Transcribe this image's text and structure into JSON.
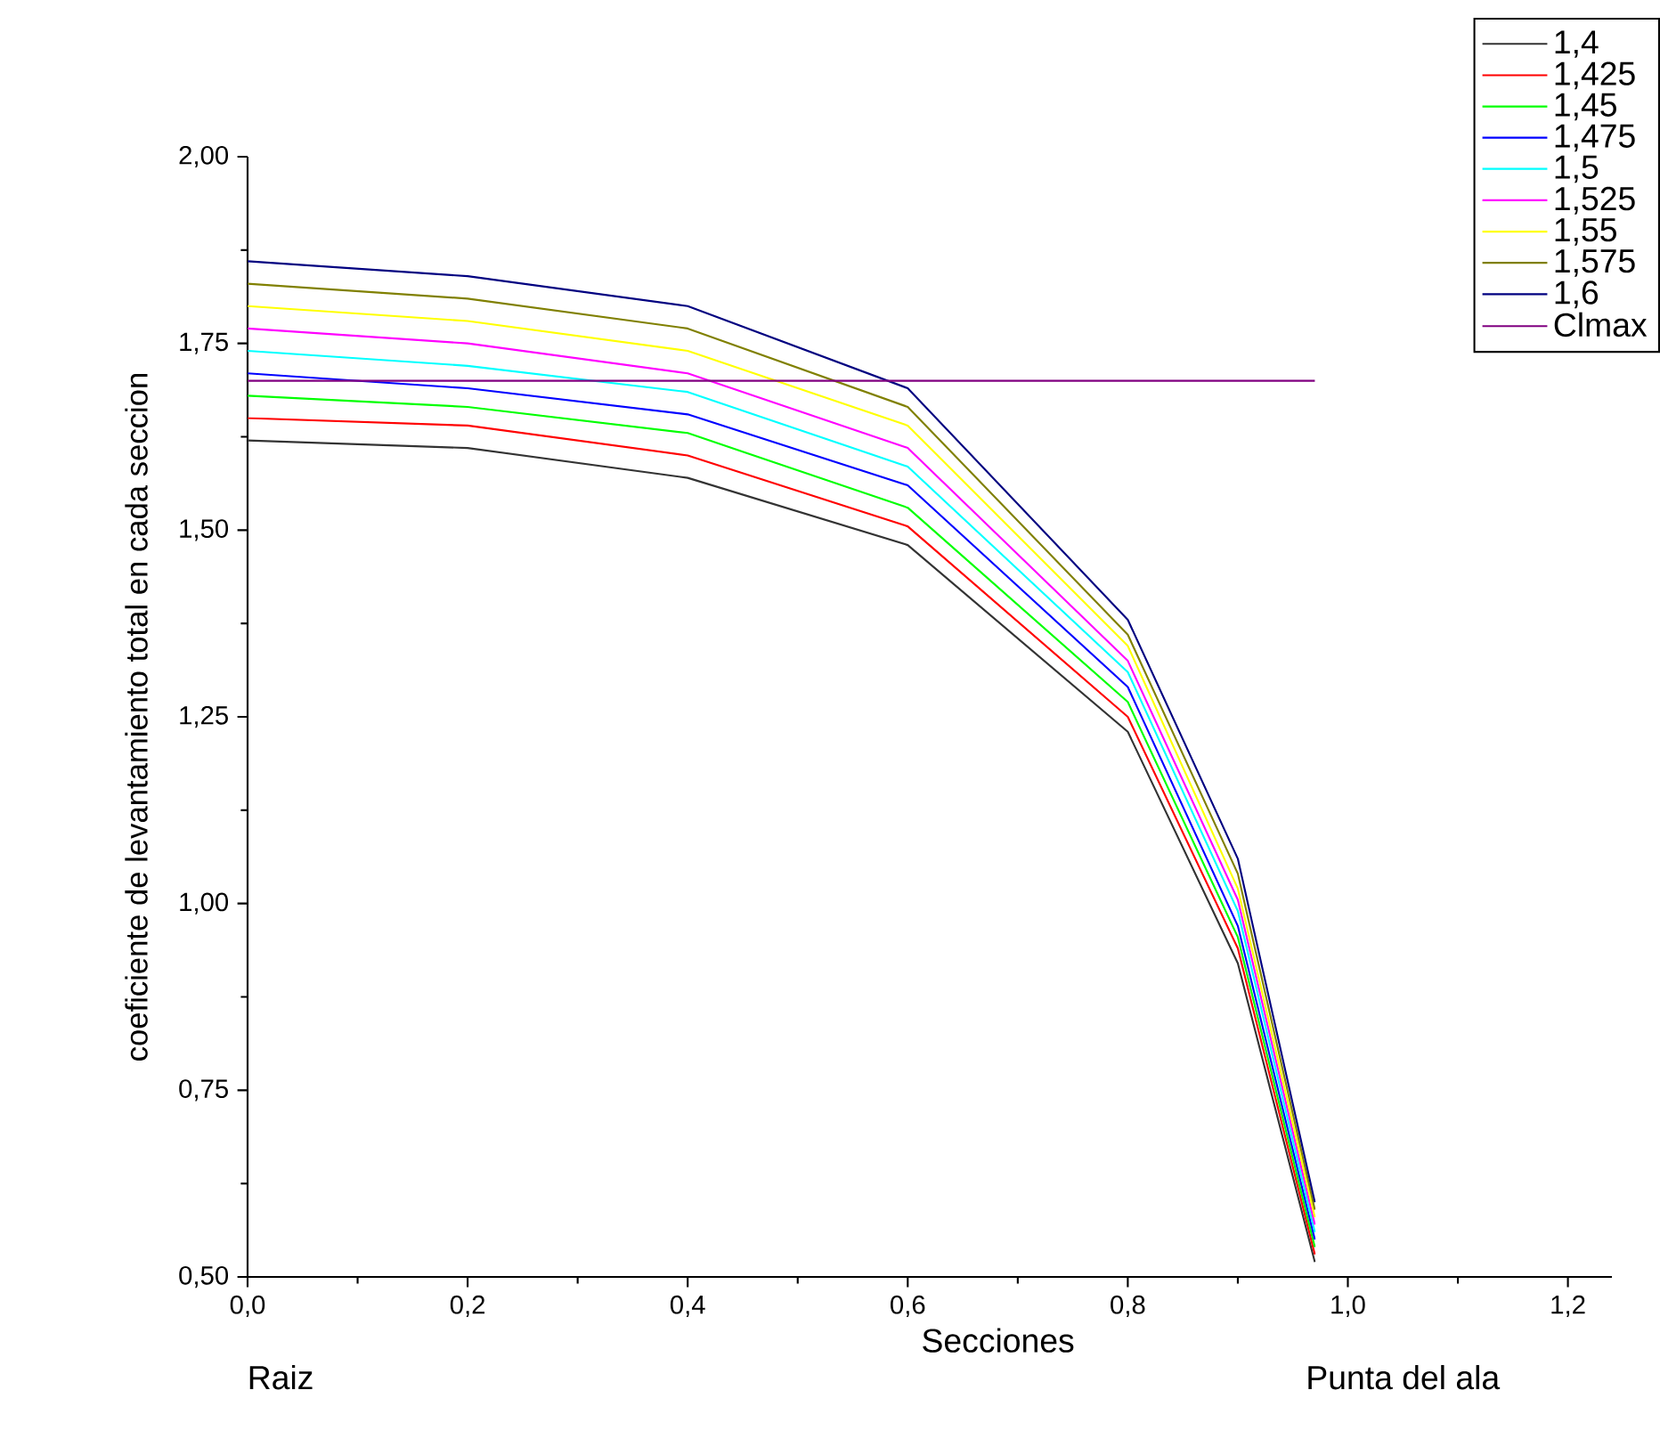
{
  "chart_data": {
    "type": "line",
    "xlabel": "Secciones",
    "ylabel": "coeficiente de levantamiento total en cada seccion",
    "annotations": [
      "Raiz",
      "Punta del ala"
    ],
    "x": [
      0,
      0.2,
      0.4,
      0.6,
      0.8,
      0.9,
      0.97
    ],
    "xlim": [
      0,
      1.24
    ],
    "xticks": [
      {
        "value": 0,
        "label": "0,0"
      },
      {
        "value": 0.2,
        "label": "0,2"
      },
      {
        "value": 0.4,
        "label": "0,4"
      },
      {
        "value": 0.6,
        "label": "0,6"
      },
      {
        "value": 0.8,
        "label": "0,8"
      },
      {
        "value": 1.0,
        "label": "1,0"
      },
      {
        "value": 1.2,
        "label": "1,2"
      }
    ],
    "ylim": [
      0.5,
      2.0
    ],
    "yticks": [
      {
        "value": 0.5,
        "label": "0,50"
      },
      {
        "value": 0.75,
        "label": "0,75"
      },
      {
        "value": 1.0,
        "label": "1,00"
      },
      {
        "value": 1.25,
        "label": "1,25"
      },
      {
        "value": 1.5,
        "label": "1,50"
      },
      {
        "value": 1.75,
        "label": "1,75"
      },
      {
        "value": 2.0,
        "label": "2,00"
      }
    ],
    "legend": "top right",
    "grid": false,
    "marker": "none",
    "line_style": "solid",
    "series": [
      {
        "name": "1,4",
        "color": "#333333",
        "values": [
          1.62,
          1.61,
          1.57,
          1.48,
          1.23,
          0.92,
          0.52
        ]
      },
      {
        "name": "1,425",
        "color": "#ff0000",
        "values": [
          1.65,
          1.64,
          1.6,
          1.505,
          1.25,
          0.94,
          0.53
        ]
      },
      {
        "name": "1,45",
        "color": "#00ff00",
        "values": [
          1.68,
          1.665,
          1.63,
          1.53,
          1.27,
          0.955,
          0.54
        ]
      },
      {
        "name": "1,475",
        "color": "#0000ff",
        "values": [
          1.71,
          1.69,
          1.655,
          1.56,
          1.29,
          0.97,
          0.55
        ]
      },
      {
        "name": "1,5",
        "color": "#00ffff",
        "values": [
          1.74,
          1.72,
          1.685,
          1.585,
          1.31,
          0.99,
          0.56
        ]
      },
      {
        "name": "1,525",
        "color": "#ff00ff",
        "values": [
          1.77,
          1.75,
          1.71,
          1.61,
          1.325,
          1.005,
          0.57
        ]
      },
      {
        "name": "1,55",
        "color": "#ffff00",
        "values": [
          1.8,
          1.78,
          1.74,
          1.64,
          1.345,
          1.02,
          0.58
        ]
      },
      {
        "name": "1,575",
        "color": "#808000",
        "values": [
          1.83,
          1.81,
          1.77,
          1.665,
          1.36,
          1.04,
          0.59
        ]
      },
      {
        "name": "1,6",
        "color": "#000080",
        "values": [
          1.86,
          1.84,
          1.8,
          1.69,
          1.38,
          1.06,
          0.6
        ]
      },
      {
        "name": "Clmax",
        "color": "#800080",
        "x": [
          0,
          0.97
        ],
        "values": [
          1.7,
          1.7
        ]
      }
    ]
  }
}
